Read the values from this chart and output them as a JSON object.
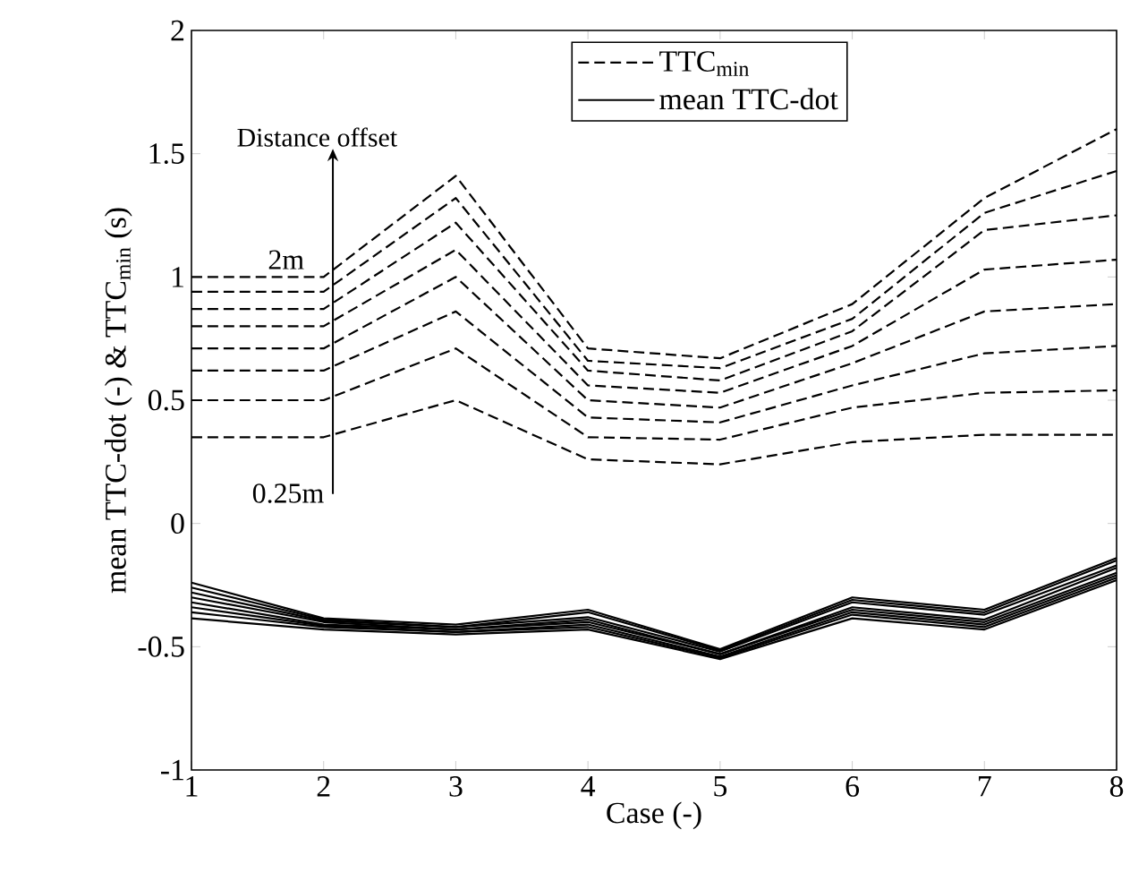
{
  "chart_data": {
    "type": "line",
    "xlabel": "Case (-)",
    "ylabel": "mean TTC-dot (-) & TTC$_{min}$ (s)",
    "x": [
      1,
      2,
      3,
      4,
      5,
      6,
      7,
      8
    ],
    "xlim": [
      1,
      8
    ],
    "ylim": [
      -1,
      2
    ],
    "xticks": [
      1,
      2,
      3,
      4,
      5,
      6,
      7,
      8
    ],
    "yticks": [
      -1,
      -0.5,
      0,
      0.5,
      1,
      1.5,
      2
    ],
    "grid": false,
    "legend": "top",
    "marker": "none",
    "annotations": [
      "Distance offset",
      "2m",
      "0.25m"
    ],
    "series": [
      {
        "name": "TTC$_{min}$",
        "color": "#000000",
        "line_style": "dashed",
        "values": [
          0.35,
          0.35,
          0.5,
          0.26,
          0.24,
          0.33,
          0.36,
          0.36
        ]
      },
      {
        "color": "#000000",
        "line_style": "dashed",
        "values": [
          0.5,
          0.5,
          0.71,
          0.35,
          0.34,
          0.47,
          0.53,
          0.54
        ]
      },
      {
        "color": "#000000",
        "line_style": "dashed",
        "values": [
          0.62,
          0.62,
          0.86,
          0.43,
          0.41,
          0.56,
          0.69,
          0.72
        ]
      },
      {
        "color": "#000000",
        "line_style": "dashed",
        "values": [
          0.71,
          0.71,
          1.0,
          0.5,
          0.47,
          0.65,
          0.86,
          0.89
        ]
      },
      {
        "color": "#000000",
        "line_style": "dashed",
        "values": [
          0.8,
          0.8,
          1.11,
          0.56,
          0.53,
          0.72,
          1.03,
          1.07
        ]
      },
      {
        "color": "#000000",
        "line_style": "dashed",
        "values": [
          0.87,
          0.87,
          1.22,
          0.62,
          0.58,
          0.78,
          1.19,
          1.25
        ]
      },
      {
        "color": "#000000",
        "line_style": "dashed",
        "values": [
          0.94,
          0.94,
          1.32,
          0.66,
          0.63,
          0.83,
          1.26,
          1.43
        ]
      },
      {
        "color": "#000000",
        "line_style": "dashed",
        "values": [
          1.0,
          1.0,
          1.41,
          0.71,
          0.67,
          0.89,
          1.32,
          1.6
        ]
      },
      {
        "name": "mean TTC-dot",
        "color": "#000000",
        "line_style": "solid",
        "values": [
          -0.385,
          -0.43,
          -0.45,
          -0.43,
          -0.55,
          -0.385,
          -0.43,
          -0.23
        ]
      },
      {
        "color": "#000000",
        "line_style": "solid",
        "values": [
          -0.36,
          -0.42,
          -0.44,
          -0.42,
          -0.545,
          -0.37,
          -0.42,
          -0.22
        ]
      },
      {
        "color": "#000000",
        "line_style": "solid",
        "values": [
          -0.34,
          -0.415,
          -0.44,
          -0.41,
          -0.54,
          -0.36,
          -0.41,
          -0.21
        ]
      },
      {
        "color": "#000000",
        "line_style": "solid",
        "values": [
          -0.32,
          -0.41,
          -0.43,
          -0.4,
          -0.53,
          -0.35,
          -0.4,
          -0.2
        ]
      },
      {
        "color": "#000000",
        "line_style": "solid",
        "values": [
          -0.3,
          -0.4,
          -0.43,
          -0.39,
          -0.53,
          -0.34,
          -0.39,
          -0.18
        ]
      },
      {
        "color": "#000000",
        "line_style": "solid",
        "values": [
          -0.28,
          -0.395,
          -0.42,
          -0.38,
          -0.52,
          -0.32,
          -0.37,
          -0.17
        ]
      },
      {
        "color": "#000000",
        "line_style": "solid",
        "values": [
          -0.26,
          -0.39,
          -0.42,
          -0.36,
          -0.515,
          -0.31,
          -0.36,
          -0.15
        ]
      },
      {
        "color": "#000000",
        "line_style": "solid",
        "values": [
          -0.24,
          -0.385,
          -0.41,
          -0.35,
          -0.51,
          -0.3,
          -0.35,
          -0.14
        ]
      }
    ]
  }
}
